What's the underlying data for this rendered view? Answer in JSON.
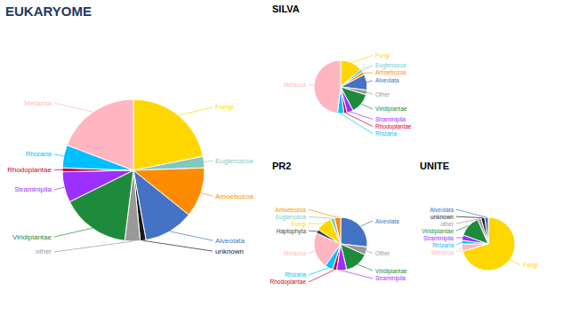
{
  "chart_data": [
    {
      "type": "pie",
      "title": "EUKARYOME",
      "categories": [
        "Fungi",
        "Euglenozoa",
        "Amoebozoa",
        "Alveolata",
        "unknown",
        "other",
        "Viridiplantae",
        "Straminipila",
        "Rhodoplantae",
        "Rhizaria",
        "Metazoa"
      ],
      "values": [
        25,
        3,
        13,
        13,
        1.5,
        4,
        18,
        8,
        1,
        6,
        22
      ],
      "colors": [
        "#FFD700",
        "#82C8C0",
        "#FF8C00",
        "#4472C4",
        "#1A1A1A",
        "#999999",
        "#1E8B3C",
        "#9B30FF",
        "#CC0033",
        "#00BFFF",
        "#FFB6C1"
      ]
    },
    {
      "type": "pie",
      "title": "SILVA",
      "categories": [
        "Fungi",
        "Euglenozoa",
        "Amoebozoa",
        "Alveolata",
        "Other",
        "Viridiplantae",
        "Straminipila",
        "Rhodoplantae",
        "Rhizaria",
        "Metazoa"
      ],
      "values": [
        14,
        2,
        2,
        10,
        3,
        13,
        4,
        2,
        4,
        50
      ],
      "colors": [
        "#FFD700",
        "#82C8C0",
        "#FF8C00",
        "#4472C4",
        "#999999",
        "#1E8B3C",
        "#9B30FF",
        "#CC0033",
        "#00BFFF",
        "#FFB6C1"
      ]
    },
    {
      "type": "pie",
      "title": "PR2",
      "categories": [
        "Alveolata",
        "Other",
        "Viridiplantae",
        "Straminipila",
        "Rhodoplantae",
        "Rhizaria",
        "Metazoa",
        "Haptophyta",
        "Fungi",
        "Euglenozoa",
        "Amoebozoa"
      ],
      "values": [
        22,
        4,
        12,
        5,
        2,
        4,
        18,
        2,
        8,
        2,
        3
      ],
      "colors": [
        "#4472C4",
        "#999999",
        "#1E8B3C",
        "#9B30FF",
        "#CC0033",
        "#00BFFF",
        "#FFB6C1",
        "#444444",
        "#FFD700",
        "#82C8C0",
        "#FF8C00"
      ]
    },
    {
      "type": "pie",
      "title": "UNITE",
      "categories": [
        "Fungi",
        "Metazoa",
        "Rhizaria",
        "Straminipila",
        "Viridiplantae",
        "other",
        "unknown",
        "Alveolata"
      ],
      "values": [
        65,
        4,
        2,
        3,
        12,
        2,
        2,
        2
      ],
      "colors": [
        "#FFD700",
        "#FFB6C1",
        "#00BFFF",
        "#9B30FF",
        "#1E8B3C",
        "#999999",
        "#1A1A1A",
        "#4472C4"
      ]
    }
  ]
}
